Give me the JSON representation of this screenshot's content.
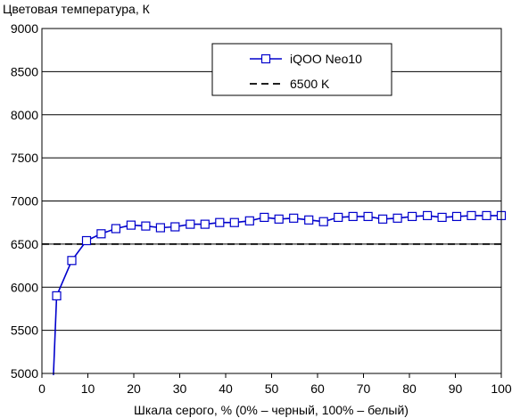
{
  "chart_data": {
    "type": "line",
    "title": "Цветовая температура, К",
    "xlabel": "Шкала серого, % (0% – черный, 100% – белый)",
    "ylabel": "",
    "xlim": [
      0,
      100
    ],
    "ylim": [
      5000,
      9000
    ],
    "xticks": [
      "0",
      "10",
      "20",
      "30",
      "40",
      "50",
      "60",
      "70",
      "80",
      "90",
      "100"
    ],
    "yticks": [
      "5000",
      "5500",
      "6000",
      "6500",
      "7000",
      "7500",
      "8000",
      "8500",
      "9000"
    ],
    "grid": "horizontal",
    "legend_position": "top-right",
    "series": [
      {
        "name": "iQOO Neo10",
        "color": "#0000cc",
        "marker": "square",
        "x": [
          2.5,
          3.2,
          6.5,
          9.7,
          12.9,
          16.1,
          19.4,
          22.6,
          25.8,
          29.0,
          32.3,
          35.5,
          38.7,
          41.9,
          45.2,
          48.4,
          51.6,
          54.8,
          58.1,
          61.3,
          64.5,
          67.7,
          71.0,
          74.2,
          77.4,
          80.6,
          83.9,
          87.1,
          90.3,
          93.5,
          96.8,
          100
        ],
        "y": [
          4980,
          5900,
          6310,
          6540,
          6620,
          6680,
          6720,
          6710,
          6690,
          6700,
          6730,
          6730,
          6750,
          6750,
          6770,
          6810,
          6790,
          6800,
          6780,
          6760,
          6810,
          6820,
          6820,
          6790,
          6800,
          6820,
          6830,
          6810,
          6820,
          6830,
          6830,
          6830
        ],
        "marker_start_index": 1
      },
      {
        "name": "6500 K",
        "color": "#000000",
        "style": "dashed",
        "x": [
          0,
          100
        ],
        "y": [
          6500,
          6500
        ]
      }
    ]
  }
}
